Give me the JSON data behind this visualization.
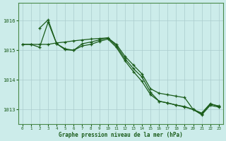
{
  "background_color": "#ccecea",
  "grid_color": "#aacccc",
  "line_color": "#1a5c1a",
  "xlabel": "Graphe pression niveau de la mer (hPa)",
  "xlabel_color": "#1a5c1a",
  "tick_color": "#1a5c1a",
  "ylim": [
    1012.5,
    1016.6
  ],
  "xlim": [
    -0.5,
    23.5
  ],
  "yticks": [
    1013,
    1014,
    1015,
    1016
  ],
  "series_A_x": [
    0,
    1,
    2,
    3,
    4,
    5,
    6,
    7,
    8,
    9,
    10,
    11,
    12,
    13,
    14,
    15,
    16,
    17,
    18,
    19,
    20,
    21,
    22,
    23
  ],
  "series_A_y": [
    1015.2,
    1015.2,
    1015.2,
    1015.2,
    1015.25,
    1015.28,
    1015.32,
    1015.35,
    1015.38,
    1015.4,
    1015.42,
    1015.2,
    1014.8,
    1014.5,
    1014.2,
    1013.7,
    1013.55,
    1013.5,
    1013.45,
    1013.4,
    1013.0,
    1012.88,
    1013.2,
    1013.1
  ],
  "series_B_x": [
    2,
    3,
    4,
    5,
    6,
    7,
    8,
    9,
    10,
    11,
    12,
    13,
    14,
    15,
    16,
    17,
    18,
    19,
    20,
    21,
    22,
    23
  ],
  "series_B_y": [
    1015.75,
    1016.03,
    1015.22,
    1015.05,
    1015.0,
    1015.22,
    1015.28,
    1015.35,
    1015.42,
    1015.15,
    1014.72,
    1014.38,
    1014.1,
    1013.58,
    1013.28,
    1013.22,
    1013.15,
    1013.1,
    1013.0,
    1012.85,
    1013.18,
    1013.12
  ],
  "series_C_x": [
    0,
    1,
    2,
    3,
    4,
    5,
    6,
    7,
    8,
    9,
    10,
    11,
    12,
    13,
    14,
    15,
    16,
    17,
    18,
    19,
    20,
    21,
    22,
    23
  ],
  "series_C_y": [
    1015.2,
    1015.2,
    1015.1,
    1015.95,
    1015.22,
    1015.02,
    1015.0,
    1015.15,
    1015.2,
    1015.3,
    1015.38,
    1015.1,
    1014.65,
    1014.28,
    1013.95,
    1013.5,
    1013.28,
    1013.22,
    1013.15,
    1013.08,
    1013.0,
    1012.82,
    1013.14,
    1013.08
  ]
}
